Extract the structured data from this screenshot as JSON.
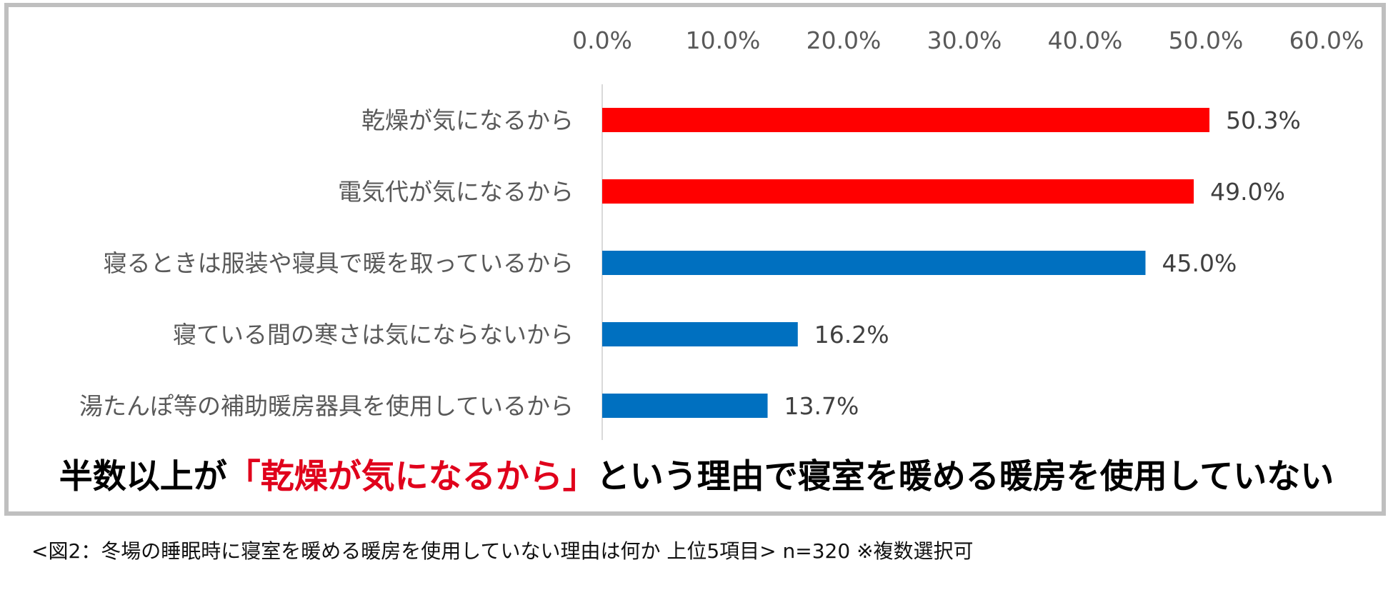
{
  "chart_data": {
    "type": "bar",
    "orientation": "horizontal",
    "categories": [
      "乾燥が気になるから",
      "電気代が気になるから",
      "寝るときは服装や寝具で暖を取っているから",
      "寝ている間の寒さは気にならないから",
      "湯たんぽ等の補助暖房器具を使用しているから"
    ],
    "values": [
      50.3,
      49.0,
      45.0,
      16.2,
      13.7
    ],
    "value_labels": [
      "50.3%",
      "49.0%",
      "45.0%",
      "16.2%",
      "13.7%"
    ],
    "bar_colors": [
      "#ff0000",
      "#ff0000",
      "#0070c0",
      "#0070c0",
      "#0070c0"
    ],
    "xlim": [
      0,
      60
    ],
    "x_ticks": [
      0,
      10,
      20,
      30,
      40,
      50,
      60
    ],
    "x_tick_labels": [
      "0.0%",
      "10.0%",
      "20.0%",
      "30.0%",
      "40.0%",
      "50.0%",
      "60.0%"
    ],
    "axis_position": "top",
    "grid": false,
    "title": "",
    "xlabel": "",
    "ylabel": ""
  },
  "headline": {
    "prefix": "半数以上が",
    "highlight": "「乾燥が気になるから」",
    "suffix": "という理由で寝室を暖める暖房を使用していない"
  },
  "caption": "<図2：冬場の睡眠時に寝室を暖める暖房を使用していない理由は何か 上位5項目> n=320 ※複数選択可",
  "colors": {
    "highlight": "#e0001b",
    "text": "#000000",
    "label_text": "#595959",
    "frame": "#bfbfbf"
  }
}
